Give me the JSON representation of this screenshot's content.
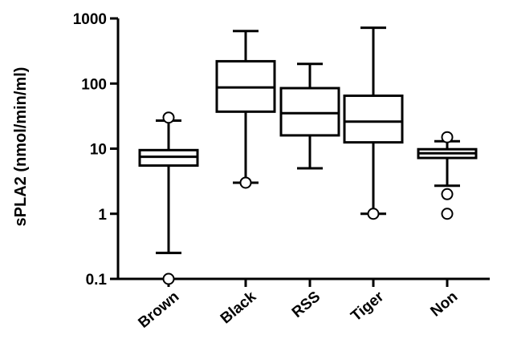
{
  "chart_data": {
    "type": "box",
    "title": "",
    "xlabel": "",
    "ylabel": "sPLA2 (nmol/min/ml)",
    "yscale": "log",
    "ylim": [
      0.1,
      1000
    ],
    "yticks": [
      0.1,
      1,
      10,
      100,
      1000
    ],
    "ytick_labels": [
      "0.1",
      "1",
      "10",
      "100",
      "1000"
    ],
    "categories": [
      "Brown",
      "Black",
      "RSS",
      "Tiger",
      "Non"
    ],
    "boxes": [
      {
        "category": "Brown",
        "whisker_low": 0.25,
        "q1": 5.5,
        "median": 7.5,
        "q3": 9.5,
        "whisker_high": 27,
        "outliers": [
          30,
          0.1
        ]
      },
      {
        "category": "Black",
        "whisker_low": 3.0,
        "q1": 37,
        "median": 87,
        "q3": 220,
        "whisker_high": 640,
        "outliers": [
          3.0
        ]
      },
      {
        "category": "RSS",
        "whisker_low": 5.0,
        "q1": 16,
        "median": 35,
        "q3": 85,
        "whisker_high": 200,
        "outliers": []
      },
      {
        "category": "Tiger",
        "whisker_low": 1.0,
        "q1": 12.5,
        "median": 26,
        "q3": 65,
        "whisker_high": 720,
        "outliers": [
          1.0
        ]
      },
      {
        "category": "Non",
        "whisker_low": 2.7,
        "q1": 7.2,
        "median": 8.5,
        "q3": 9.8,
        "whisker_high": 13,
        "outliers": [
          15,
          2.0,
          1.0
        ]
      }
    ]
  }
}
